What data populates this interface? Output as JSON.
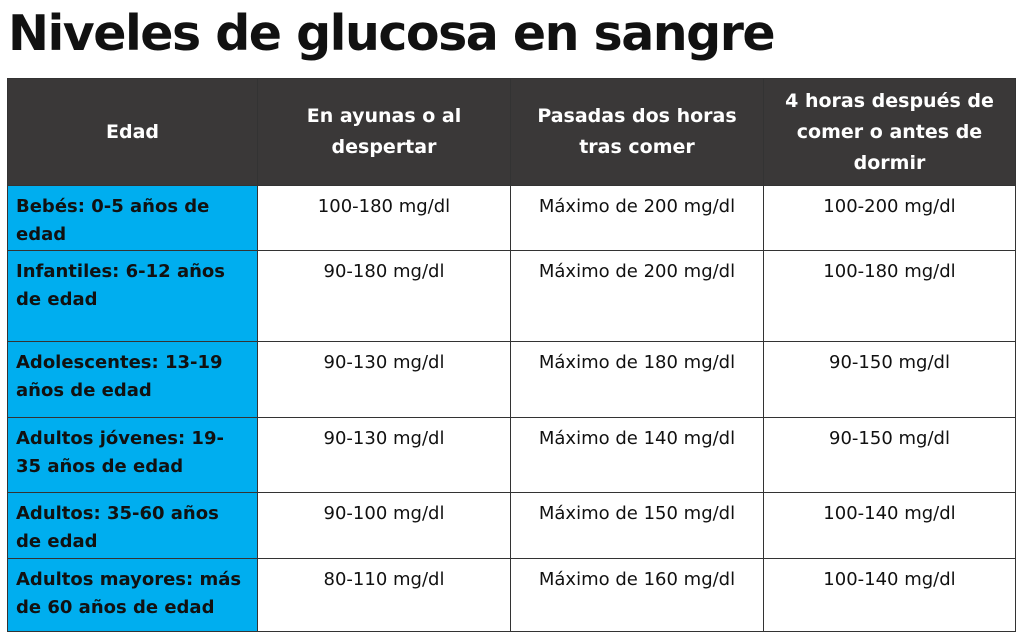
{
  "title": "Niveles de glucosa en sangre",
  "headers": [
    "Edad",
    "En ayunas o al despertar",
    "Pasadas dos horas tras comer",
    "4 horas después de comer o antes de dormir"
  ],
  "rows": [
    {
      "age": "Bebés: 0-5 años de edad",
      "fasting": "100-180 mg/dl",
      "two_hours": "Máximo de 200 mg/dl",
      "four_hours": "100-200 mg/dl"
    },
    {
      "age": "Infantiles: 6-12 años de edad",
      "fasting": "90-180 mg/dl",
      "two_hours": "Máximo de 200 mg/dl",
      "four_hours": "100-180 mg/dl"
    },
    {
      "age": "Adolescentes: 13-19 años de edad",
      "fasting": "90-130 mg/dl",
      "two_hours": "Máximo de 180 mg/dl",
      "four_hours": "90-150 mg/dl"
    },
    {
      "age": "Adultos jóvenes: 19-35 años de edad",
      "fasting": "90-130 mg/dl",
      "two_hours": "Máximo de 140 mg/dl",
      "four_hours": "90-150 mg/dl"
    },
    {
      "age": "Adultos: 35-60 años de edad",
      "fasting": "90-100 mg/dl",
      "two_hours": "Máximo de 150 mg/dl",
      "four_hours": "100-140 mg/dl"
    },
    {
      "age": "Adultos mayores: más de 60 años de edad",
      "fasting": "80-110 mg/dl",
      "two_hours": "Máximo de 160 mg/dl",
      "four_hours": "100-140 mg/dl"
    }
  ],
  "colors": {
    "header_bg": "#3a3838",
    "age_column_bg": "#00aeef",
    "border": "#333333"
  }
}
